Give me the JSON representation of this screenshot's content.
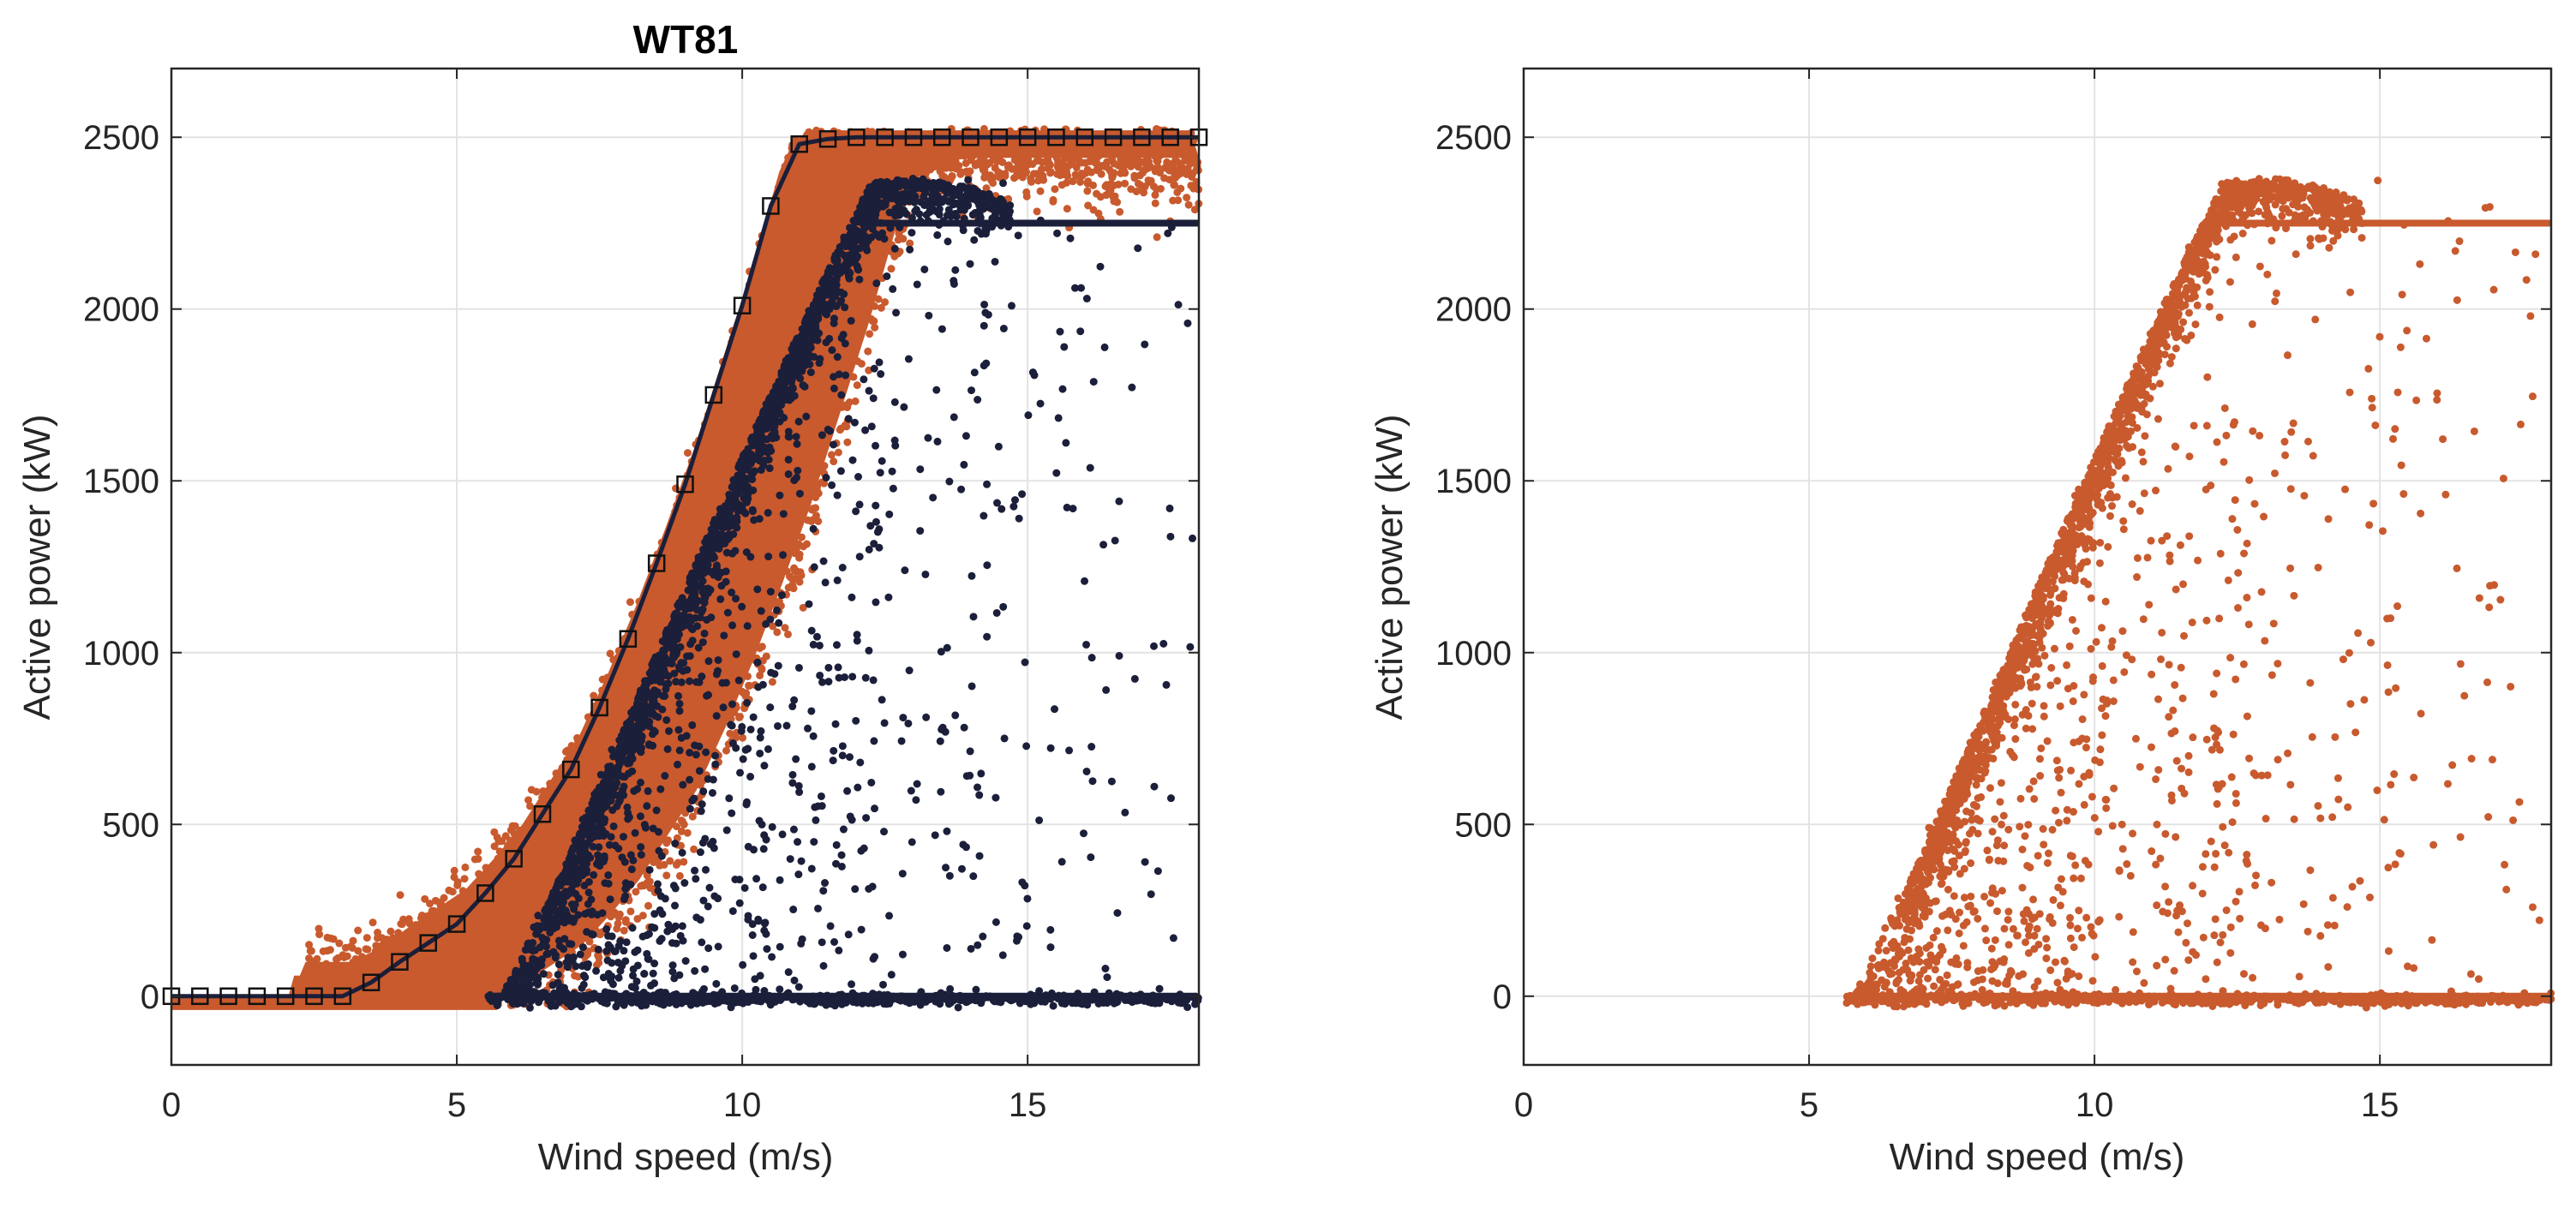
{
  "chart_data": [
    {
      "type": "scatter",
      "title": "WT81",
      "xlabel": "Wind speed (m/s)",
      "ylabel": "Active power (kW)",
      "xlim": [
        0,
        18
      ],
      "ylim": [
        -200,
        2700
      ],
      "xticks": [
        0,
        5,
        10,
        15
      ],
      "yticks": [
        0,
        500,
        1000,
        1500,
        2000,
        2500
      ],
      "grid": true,
      "legend": null,
      "series": [
        {
          "name": "normal-data",
          "kind": "scatter-band",
          "color": "#C85A2E",
          "description": "Dense band around the reference power curve, from ~2.5 m/s to 18 m/s, saturating near 2500 kW above ~11.5 m/s",
          "band_offset_right_ms": [
            0,
            2.6
          ],
          "x_range": [
            0,
            18
          ]
        },
        {
          "name": "anomalous-data",
          "kind": "scatter",
          "color": "#1B1F3A",
          "description": "Curtailed cluster peaking ~2380 kW at ~13 m/s then flat at 2250 kW; sparse points below; zero-power line from 5.5 to 18 m/s",
          "curtailed_level_kw": 2250,
          "peak_kw": 2380,
          "zero_line_x_range": [
            5.5,
            18
          ]
        },
        {
          "name": "reference-power-curve",
          "kind": "line-with-square-markers",
          "color": "#1B1F3A",
          "x": [
            0,
            0.5,
            1,
            1.5,
            2,
            2.5,
            3,
            3.5,
            4,
            4.5,
            5,
            5.5,
            6,
            6.5,
            7,
            7.5,
            8,
            8.5,
            9,
            9.5,
            10,
            10.5,
            11,
            11.5,
            12,
            12.5,
            13,
            13.5,
            14,
            14.5,
            15,
            15.5,
            16,
            16.5,
            17,
            17.5,
            18
          ],
          "y": [
            0,
            0,
            0,
            0,
            0,
            0,
            0,
            40,
            100,
            155,
            210,
            300,
            400,
            530,
            660,
            840,
            1040,
            1260,
            1490,
            1750,
            2010,
            2300,
            2480,
            2495,
            2500,
            2500,
            2500,
            2500,
            2500,
            2500,
            2500,
            2500,
            2500,
            2500,
            2500,
            2500,
            2500
          ]
        }
      ]
    },
    {
      "type": "scatter",
      "title": "",
      "xlabel": "Wind speed (m/s)",
      "ylabel": "Active power (kW)",
      "xlim": [
        0,
        18
      ],
      "ylim": [
        -200,
        2700
      ],
      "xticks": [
        0,
        5,
        10,
        15
      ],
      "yticks": [
        0,
        500,
        1000,
        1500,
        2000,
        2500
      ],
      "grid": true,
      "legend": null,
      "series": [
        {
          "name": "anomalous-data",
          "kind": "scatter",
          "color": "#C85A2E",
          "description": "Same anomalous points as left panel in orange: cluster peaking ~2380 kW at ~13 m/s, flat at 2250 kW to 18 m/s, sparse points below, zero-power line from 5.6 to 18 m/s",
          "curtailed_level_kw": 2250,
          "peak_kw": 2380,
          "zero_line_x_range": [
            5.6,
            18
          ]
        }
      ]
    }
  ],
  "panels": [
    {
      "title": "WT81",
      "xlabel": "Wind speed (m/s)",
      "ylabel": "Active power (kW)"
    },
    {
      "title": "",
      "xlabel": "Wind speed (m/s)",
      "ylabel": "Active power (kW)"
    }
  ],
  "colors": {
    "orange": "#C85A2E",
    "navy": "#1B1F3A",
    "grid": "#E3E3E3",
    "axis": "#262626"
  }
}
